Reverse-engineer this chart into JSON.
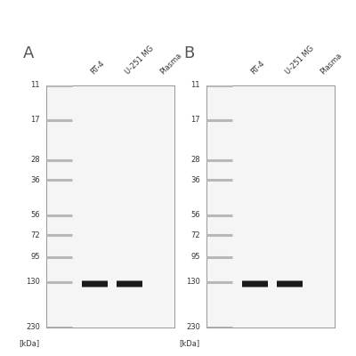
{
  "panel_A_label": "A",
  "panel_B_label": "B",
  "ladder_labels": [
    "230",
    "130",
    "95",
    "72",
    "56",
    "36",
    "28",
    "17",
    "11"
  ],
  "ladder_positions": [
    230,
    130,
    95,
    72,
    56,
    36,
    28,
    17,
    11
  ],
  "sample_labels": [
    "RT-4",
    "U-251 MG",
    "Plasma"
  ],
  "kda_label": "[kDa]",
  "band_mw": 130,
  "band_color": "#1a1a1a",
  "ladder_color": "#b8b8b8",
  "panel_bg": "#f5f5f5",
  "figure_bg": "#ffffff",
  "panel_A_lanes_with_bands": [
    0,
    1
  ],
  "panel_B_lanes_with_bands": [
    0,
    1
  ],
  "band_label_fontsize": 6.0,
  "sample_label_fontsize": 6.0,
  "panel_letter_fontsize": 13
}
